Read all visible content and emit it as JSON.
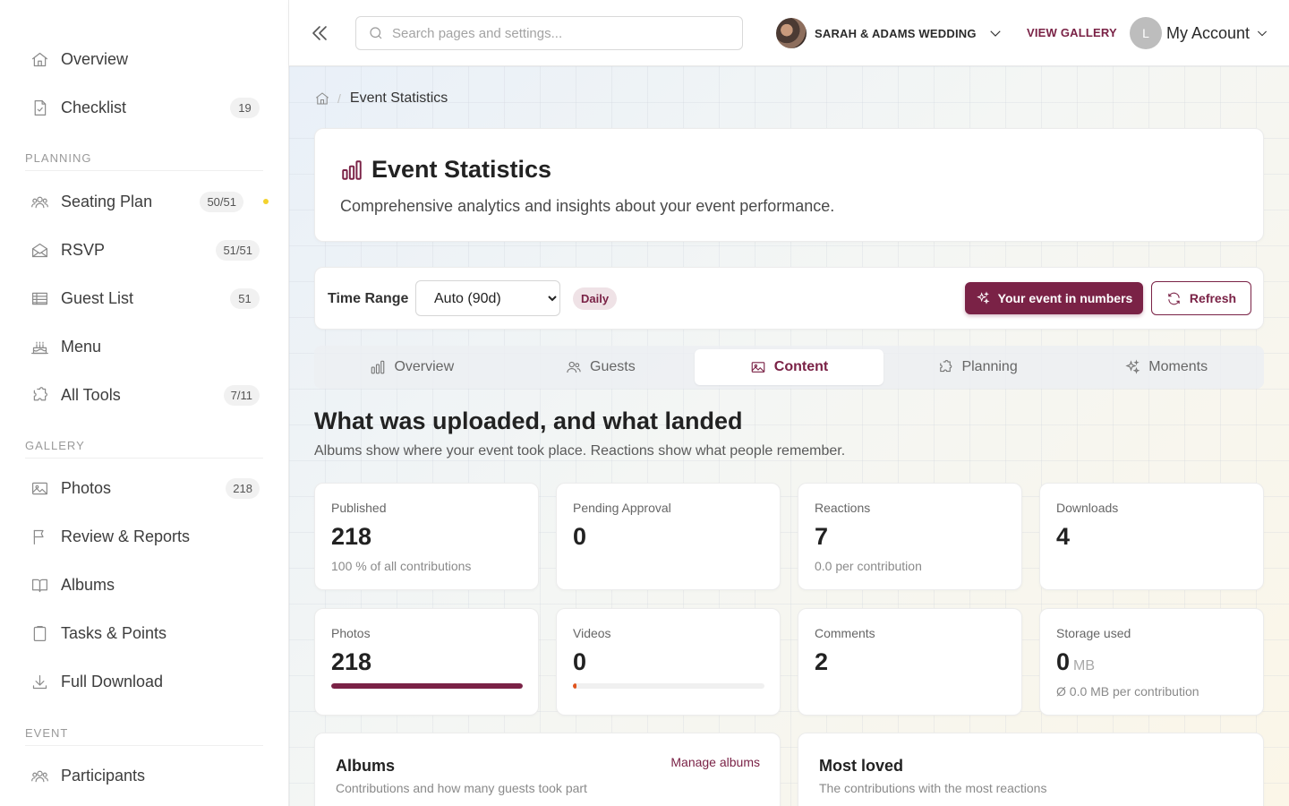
{
  "sidebar": {
    "items": [
      {
        "label": "Overview"
      },
      {
        "label": "Checklist",
        "badge": "19"
      },
      {
        "label": "Seating Plan",
        "badge": "50/51"
      },
      {
        "label": "RSVP",
        "badge": "51/51"
      },
      {
        "label": "Guest List",
        "badge": "51"
      },
      {
        "label": "Menu"
      },
      {
        "label": "All Tools",
        "badge": "7/11"
      },
      {
        "label": "Photos",
        "badge": "218"
      },
      {
        "label": "Review & Reports"
      },
      {
        "label": "Albums"
      },
      {
        "label": "Tasks & Points"
      },
      {
        "label": "Full Download"
      },
      {
        "label": "Participants"
      }
    ],
    "sections": {
      "planning": "PLANNING",
      "gallery": "GALLERY",
      "event": "EVENT"
    }
  },
  "topbar": {
    "search_placeholder": "Search pages and settings...",
    "event_name": "SARAH & ADAMS WEDDING",
    "view_gallery": "VIEW GALLERY",
    "account_initial": "L",
    "account_label": "My Account"
  },
  "breadcrumb": {
    "current": "Event Statistics"
  },
  "header": {
    "title": "Event Statistics",
    "subtitle": "Comprehensive analytics and insights about your event performance."
  },
  "filters": {
    "time_range_label": "Time Range",
    "time_range_value": "Auto (90d)",
    "granularity": "Daily",
    "primary_button": "Your event in numbers",
    "refresh_button": "Refresh"
  },
  "tabs": [
    {
      "label": "Overview",
      "icon": "bar-chart-icon"
    },
    {
      "label": "Guests",
      "icon": "users-icon"
    },
    {
      "label": "Content",
      "icon": "image-icon",
      "active": true
    },
    {
      "label": "Planning",
      "icon": "puzzle-icon"
    },
    {
      "label": "Moments",
      "icon": "sparkles-icon"
    }
  ],
  "section": {
    "title": "What was uploaded, and what landed",
    "subtitle": "Albums show where your event took place. Reactions show what people remember."
  },
  "stats": {
    "published": {
      "label": "Published",
      "value": "218",
      "note": "100 % of all contributions"
    },
    "pending": {
      "label": "Pending Approval",
      "value": "0"
    },
    "reactions": {
      "label": "Reactions",
      "value": "7",
      "note": "0.0 per contribution"
    },
    "downloads": {
      "label": "Downloads",
      "value": "4"
    },
    "photos": {
      "label": "Photos",
      "value": "218",
      "share": 1.0
    },
    "videos": {
      "label": "Videos",
      "value": "0",
      "share": 0.0
    },
    "comments": {
      "label": "Comments",
      "value": "2"
    },
    "storage": {
      "label": "Storage used",
      "value": "0",
      "unit": "MB",
      "note": "Ø 0.0 MB per contribution"
    }
  },
  "panels": {
    "albums": {
      "title": "Albums",
      "subtitle": "Contributions and how many guests took part",
      "link": "Manage albums"
    },
    "most_loved": {
      "title": "Most loved",
      "subtitle": "The contributions with the most reactions"
    }
  },
  "colors": {
    "accent": "#7a2246",
    "videos_bar": "#e0541d",
    "status_dot": "#f3d22d"
  }
}
